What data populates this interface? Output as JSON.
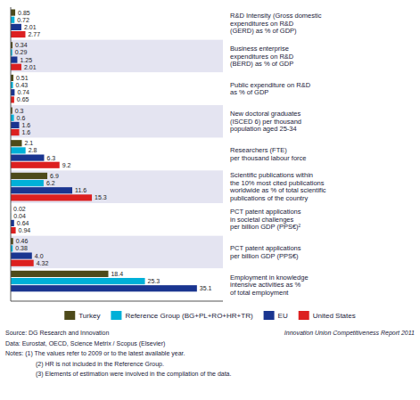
{
  "chart_data": {
    "type": "bar",
    "orientation": "horizontal",
    "categories": [
      "R&D Intensity (Gross domestic\nexpenditures on R&D\n(GERD) as % of GDP)",
      "Business enterprise\nexpenditures on R&D\n(BERD) as % of GDP",
      "Public expenditure on R&D\nas % of GDP",
      "New doctoral graduates\n(ISCED 6) per thousand\npopulation aged 25-34",
      "Researchers (FTE)\nper thousand labour force",
      "Scientific publications within\nthe 10% most cited publications\nworldwide as % of total scientific\npublications of the country",
      "PCT patent applications\nin societal challenges\nper billion GDP (PPS€)²",
      "PCT patent applications\nper billion GDP (PPS€)",
      "Employment in knowledge\nintensive activities as %\nof total employment"
    ],
    "series": [
      {
        "name": "Turkey",
        "color": "#4d4a1a",
        "values": [
          0.85,
          0.34,
          0.51,
          0.3,
          2.1,
          6.9,
          0.02,
          0.46,
          18.4
        ]
      },
      {
        "name": "Reference Group (BG+PL+RO+HR+TR)",
        "color": "#00b0d8",
        "values": [
          0.72,
          0.29,
          0.43,
          0.6,
          2.8,
          6.2,
          0.04,
          0.38,
          25.3
        ]
      },
      {
        "name": "EU",
        "color": "#1a3590",
        "values": [
          2.01,
          1.25,
          0.74,
          1.6,
          6.3,
          11.6,
          0.64,
          4.0,
          35.1
        ],
        "value_labels": [
          "2.01",
          "1.25",
          "0.74",
          "1.6",
          "6.3",
          "11.6",
          "0.64",
          "4.0",
          "35.1"
        ]
      },
      {
        "name": "United States",
        "color": "#dc2020",
        "values": [
          2.77,
          2.01,
          0.65,
          1.6,
          9.2,
          15.3,
          0.94,
          4.32,
          null
        ]
      }
    ],
    "xlim": [
      0,
      40
    ],
    "tick_labels": false,
    "data_labels": true,
    "legend": "bottom",
    "annotations": [
      "Source: DG Research and Innovation",
      "Data: Eurostat, OECD, Science Metrix / Scopus (Elsevier)",
      "Notes:  (1) The values refer to 2009 or to the latest available year.",
      "(2) HR is not included in the Reference Group.",
      "(3) Elements of estimation were involved in the compilation of the data.",
      "Innovation Union Competitiveness Report 2011"
    ]
  }
}
